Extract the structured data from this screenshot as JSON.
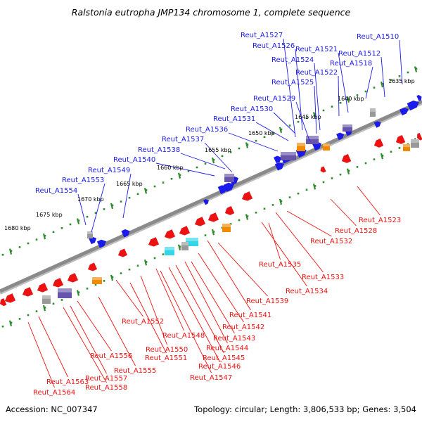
{
  "title": "Ralstonia eutropha JMP134 chromosome 1, complete sequence",
  "footer": {
    "accession": "Accession: NC_007347",
    "info": "Topology: circular; Length: 3,806,533 bp; Genes: 3,504"
  },
  "ticks": [
    "1635 kbp",
    "1640 kbp",
    "1645 kbp",
    "1650 kbp",
    "1655 kbp",
    "1660 kbp",
    "1665 kbp",
    "1670 kbp",
    "1675 kbp",
    "1680 kbp"
  ],
  "colors": {
    "forward_gene": "#1a1aee",
    "reverse_gene": "#ee1111",
    "backbone": "#8a8a8a",
    "tick": "#2e8b2e",
    "orange_feature": "#f08a00",
    "cyan_feature": "#33d6e6",
    "purple_feature": "#6655aa",
    "grey_feature": "#999999",
    "text": "#000000"
  },
  "forward_genes": [
    "Reut_A1510",
    "Reut_A1512",
    "Reut_A1518",
    "Reut_A1521",
    "Reut_A1522",
    "Reut_A1524",
    "Reut_A1525",
    "Reut_A1526",
    "Reut_A1527",
    "Reut_A1529",
    "Reut_A1530",
    "Reut_A1531",
    "Reut_A1536",
    "Reut_A1537",
    "Reut_A1538",
    "Reut_A1540",
    "Reut_A1549",
    "Reut_A1553",
    "Reut_A1554"
  ],
  "reverse_genes": [
    "Reut_A1523",
    "Reut_A1528",
    "Reut_A1532",
    "Reut_A1533",
    "Reut_A1534",
    "Reut_A1535",
    "Reut_A1539",
    "Reut_A1541",
    "Reut_A1542",
    "Reut_A1543",
    "Reut_A1544",
    "Reut_A1545",
    "Reut_A1546",
    "Reut_A1547",
    "Reut_A1548",
    "Reut_A1550",
    "Reut_A1551",
    "Reut_A1552",
    "Reut_A1555",
    "Reut_A1556",
    "Reut_A1557",
    "Reut_A1558",
    "Reut_A1563",
    "Reut_A1564"
  ]
}
